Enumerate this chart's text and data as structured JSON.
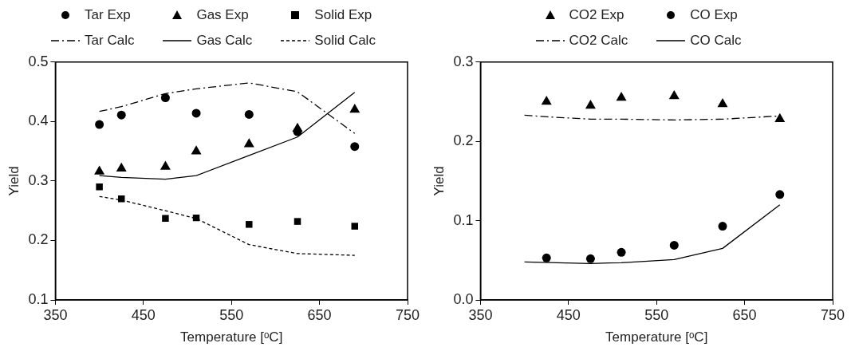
{
  "chart_data": [
    {
      "type": "scatter",
      "xlabel": "Temperature [ᵒC]",
      "ylabel": "Yield",
      "xlim": [
        350,
        750
      ],
      "xticks": [
        350,
        450,
        550,
        650,
        750
      ],
      "ylim": [
        0.1,
        0.5
      ],
      "yticks": [
        0.1,
        0.2,
        0.3,
        0.4,
        0.5
      ],
      "grid": false,
      "legend": "top",
      "series": [
        {
          "name": "Tar Exp",
          "type": "scatter",
          "marker": "circle",
          "color": "#000000",
          "x": [
            400,
            425,
            475,
            510,
            570,
            625,
            690
          ],
          "values": [
            0.395,
            0.411,
            0.44,
            0.414,
            0.412,
            0.383,
            0.358
          ]
        },
        {
          "name": "Gas Exp",
          "type": "scatter",
          "marker": "triangle",
          "color": "#000000",
          "x": [
            400,
            425,
            475,
            510,
            570,
            625,
            690
          ],
          "values": [
            0.316,
            0.321,
            0.324,
            0.35,
            0.362,
            0.388,
            0.42
          ]
        },
        {
          "name": "Solid Exp",
          "type": "scatter",
          "marker": "square",
          "color": "#000000",
          "x": [
            400,
            425,
            475,
            510,
            570,
            625,
            690
          ],
          "values": [
            0.29,
            0.27,
            0.237,
            0.238,
            0.227,
            0.232,
            0.224
          ]
        },
        {
          "name": "Tar Calc",
          "type": "line",
          "marker": "none",
          "line_style": "dashdot",
          "color": "#000000",
          "x": [
            400,
            425,
            475,
            510,
            570,
            625,
            690
          ],
          "values": [
            0.417,
            0.425,
            0.447,
            0.455,
            0.465,
            0.45,
            0.38
          ]
        },
        {
          "name": "Gas Calc",
          "type": "line",
          "marker": "none",
          "line_style": "solid",
          "color": "#000000",
          "x": [
            400,
            425,
            475,
            510,
            570,
            625,
            690
          ],
          "values": [
            0.309,
            0.306,
            0.303,
            0.309,
            0.343,
            0.374,
            0.449
          ]
        },
        {
          "name": "Solid Calc",
          "type": "line",
          "marker": "none",
          "line_style": "dashed",
          "color": "#000000",
          "x": [
            400,
            425,
            475,
            510,
            570,
            625,
            690
          ],
          "values": [
            0.274,
            0.268,
            0.25,
            0.237,
            0.193,
            0.178,
            0.175
          ]
        }
      ]
    },
    {
      "type": "scatter",
      "xlabel": "Temperature [ᵒC]",
      "ylabel": "Yield",
      "xlim": [
        350,
        750
      ],
      "xticks": [
        350,
        450,
        550,
        650,
        750
      ],
      "ylim": [
        0,
        0.3
      ],
      "yticks": [
        {
          "value": 0,
          "label": "0.0"
        },
        0.1,
        0.2,
        0.3
      ],
      "grid": false,
      "legend": "top",
      "series": [
        {
          "name": "CO2 Exp",
          "type": "scatter",
          "marker": "triangle",
          "color": "#000000",
          "x": [
            425,
            475,
            510,
            570,
            625,
            690
          ],
          "values": [
            0.25,
            0.245,
            0.255,
            0.257,
            0.247,
            0.228
          ]
        },
        {
          "name": "CO Exp",
          "type": "scatter",
          "marker": "circle",
          "color": "#000000",
          "x": [
            425,
            475,
            510,
            570,
            625,
            690
          ],
          "values": [
            0.053,
            0.052,
            0.06,
            0.069,
            0.093,
            0.133
          ]
        },
        {
          "name": "CO2 Calc",
          "type": "line",
          "marker": "none",
          "line_style": "dashdot",
          "color": "#000000",
          "x": [
            400,
            425,
            475,
            510,
            570,
            625,
            690
          ],
          "values": [
            0.233,
            0.231,
            0.228,
            0.228,
            0.227,
            0.228,
            0.232
          ]
        },
        {
          "name": "CO Calc",
          "type": "line",
          "marker": "none",
          "line_style": "solid",
          "color": "#000000",
          "x": [
            400,
            475,
            510,
            570,
            625,
            690
          ],
          "values": [
            0.048,
            0.046,
            0.047,
            0.051,
            0.065,
            0.12
          ]
        }
      ]
    }
  ]
}
